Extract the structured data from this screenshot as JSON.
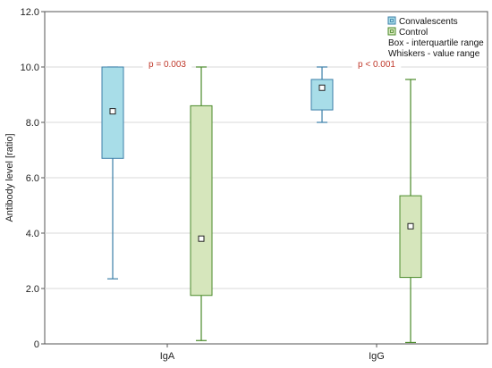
{
  "chart_data": {
    "type": "box",
    "ylabel": "Antibody level [ratio]",
    "ylim": [
      0,
      12
    ],
    "yticks": [
      0,
      2.0,
      4.0,
      6.0,
      8.0,
      10.0,
      12.0
    ],
    "ytick_labels": [
      "0",
      "2.0",
      "4.0",
      "6.0",
      "8.0",
      "10.0",
      "12.0"
    ],
    "grid": true,
    "legend_position": "top-right",
    "categories": [
      "IgA",
      "IgG"
    ],
    "series": [
      {
        "name": "Convalescents",
        "color": "#a8dde8",
        "stroke": "#3b7fa8",
        "boxes": [
          {
            "category": "IgA",
            "min": 2.35,
            "q1": 6.7,
            "median": 8.4,
            "q3": 10.0,
            "max": 10.0
          },
          {
            "category": "IgG",
            "min": 8.0,
            "q1": 8.45,
            "median": 9.25,
            "q3": 9.55,
            "max": 10.0
          }
        ]
      },
      {
        "name": "Control",
        "color": "#d6e6bc",
        "stroke": "#4a8a2a",
        "boxes": [
          {
            "category": "IgA",
            "min": 0.12,
            "q1": 1.75,
            "median": 3.8,
            "q3": 8.6,
            "max": 10.0
          },
          {
            "category": "IgG",
            "min": 0.05,
            "q1": 2.4,
            "median": 4.25,
            "q3": 5.35,
            "max": 9.55
          }
        ]
      }
    ],
    "legend_notes": [
      "Box - interquartile range",
      "Whiskers - value range"
    ],
    "annotations": [
      {
        "category": "IgA",
        "text": "p = 0.003",
        "y": 10.0
      },
      {
        "category": "IgG",
        "text": "p < 0.001",
        "y": 10.0
      }
    ]
  }
}
